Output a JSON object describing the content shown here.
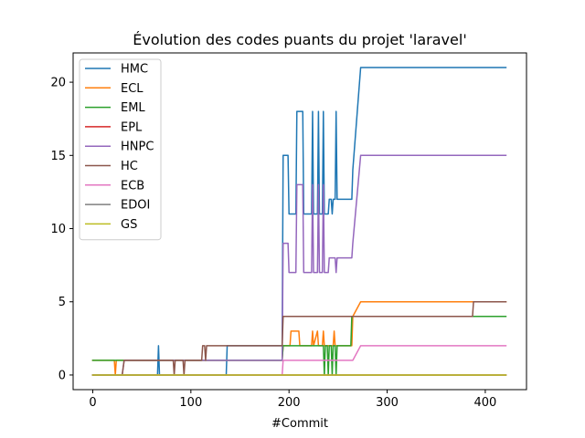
{
  "chart_data": {
    "type": "line",
    "title": "Évolution des codes puants du projet 'laravel'",
    "xlabel": "#Commit",
    "ylabel": "",
    "xlim": [
      -20,
      442
    ],
    "ylim": [
      -1,
      22
    ],
    "xticks": [
      0,
      100,
      200,
      300,
      400
    ],
    "yticks": [
      0,
      5,
      10,
      15,
      20
    ],
    "grid": false,
    "legend_position": "top-left",
    "series": [
      {
        "name": "HMC",
        "color": "#1f77b4",
        "points": [
          [
            0,
            0
          ],
          [
            66,
            0
          ],
          [
            67,
            2
          ],
          [
            68,
            0
          ],
          [
            136,
            0
          ],
          [
            137,
            2
          ],
          [
            193,
            2
          ],
          [
            194,
            15
          ],
          [
            199,
            15
          ],
          [
            200,
            11
          ],
          [
            207,
            11
          ],
          [
            208,
            18
          ],
          [
            214,
            18
          ],
          [
            215,
            11
          ],
          [
            223,
            11
          ],
          [
            224,
            18
          ],
          [
            225,
            11
          ],
          [
            229,
            11
          ],
          [
            230,
            18
          ],
          [
            231,
            11
          ],
          [
            234,
            11
          ],
          [
            235,
            18
          ],
          [
            236,
            11
          ],
          [
            240,
            11
          ],
          [
            241,
            12
          ],
          [
            243,
            12
          ],
          [
            244,
            11
          ],
          [
            245,
            12
          ],
          [
            247,
            12
          ],
          [
            248,
            18
          ],
          [
            249,
            12
          ],
          [
            264,
            12
          ],
          [
            265,
            14
          ],
          [
            273,
            21
          ],
          [
            421,
            21
          ]
        ]
      },
      {
        "name": "ECL",
        "color": "#ff7f0e",
        "points": [
          [
            0,
            1
          ],
          [
            22,
            1
          ],
          [
            23,
            0
          ],
          [
            24,
            1
          ],
          [
            193,
            1
          ],
          [
            194,
            2
          ],
          [
            201,
            2
          ],
          [
            202,
            3
          ],
          [
            210,
            3
          ],
          [
            211,
            2
          ],
          [
            223,
            2
          ],
          [
            224,
            3
          ],
          [
            225,
            2
          ],
          [
            229,
            3
          ],
          [
            230,
            2
          ],
          [
            234,
            2
          ],
          [
            235,
            3
          ],
          [
            236,
            2
          ],
          [
            245,
            2
          ],
          [
            246,
            3
          ],
          [
            247,
            2
          ],
          [
            264,
            2
          ],
          [
            265,
            4
          ],
          [
            273,
            5
          ],
          [
            421,
            5
          ]
        ]
      },
      {
        "name": "EML",
        "color": "#2ca02c",
        "points": [
          [
            0,
            1
          ],
          [
            193,
            1
          ],
          [
            194,
            2
          ],
          [
            235,
            2
          ],
          [
            236,
            0
          ],
          [
            237,
            2
          ],
          [
            239,
            2
          ],
          [
            240,
            0
          ],
          [
            241,
            2
          ],
          [
            243,
            2
          ],
          [
            244,
            0
          ],
          [
            245,
            2
          ],
          [
            247,
            2
          ],
          [
            248,
            0
          ],
          [
            249,
            2
          ],
          [
            263,
            2
          ],
          [
            264,
            4
          ],
          [
            421,
            4
          ]
        ]
      },
      {
        "name": "EPL",
        "color": "#d62728",
        "points": [
          [
            0,
            0
          ],
          [
            421,
            0
          ]
        ]
      },
      {
        "name": "HNPC",
        "color": "#9467bd",
        "points": [
          [
            0,
            0
          ],
          [
            30,
            0
          ],
          [
            32,
            1
          ],
          [
            193,
            1
          ],
          [
            194,
            9
          ],
          [
            199,
            9
          ],
          [
            200,
            7
          ],
          [
            207,
            7
          ],
          [
            208,
            13
          ],
          [
            214,
            13
          ],
          [
            215,
            7
          ],
          [
            223,
            7
          ],
          [
            224,
            13
          ],
          [
            225,
            7
          ],
          [
            229,
            7
          ],
          [
            230,
            13
          ],
          [
            231,
            7
          ],
          [
            234,
            7
          ],
          [
            235,
            13
          ],
          [
            236,
            7
          ],
          [
            240,
            7
          ],
          [
            241,
            8
          ],
          [
            247,
            8
          ],
          [
            248,
            7
          ],
          [
            249,
            8
          ],
          [
            264,
            8
          ],
          [
            265,
            9
          ],
          [
            273,
            15
          ],
          [
            421,
            15
          ]
        ]
      },
      {
        "name": "HC",
        "color": "#8c564b",
        "points": [
          [
            0,
            0
          ],
          [
            30,
            0
          ],
          [
            32,
            1
          ],
          [
            82,
            1
          ],
          [
            83,
            0
          ],
          [
            84,
            1
          ],
          [
            92,
            1
          ],
          [
            93,
            0
          ],
          [
            94,
            1
          ],
          [
            111,
            1
          ],
          [
            112,
            2
          ],
          [
            114,
            2
          ],
          [
            115,
            1
          ],
          [
            116,
            2
          ],
          [
            193,
            2
          ],
          [
            194,
            4
          ],
          [
            387,
            4
          ],
          [
            388,
            5
          ],
          [
            421,
            5
          ]
        ]
      },
      {
        "name": "ECB",
        "color": "#e377c2",
        "points": [
          [
            0,
            0
          ],
          [
            193,
            0
          ],
          [
            194,
            1
          ],
          [
            265,
            1
          ],
          [
            273,
            2
          ],
          [
            421,
            2
          ]
        ]
      },
      {
        "name": "EDOI",
        "color": "#7f7f7f",
        "points": [
          [
            0,
            0
          ],
          [
            421,
            0
          ]
        ]
      },
      {
        "name": "GS",
        "color": "#bcbd22",
        "points": [
          [
            0,
            0
          ],
          [
            421,
            0
          ]
        ]
      }
    ]
  }
}
